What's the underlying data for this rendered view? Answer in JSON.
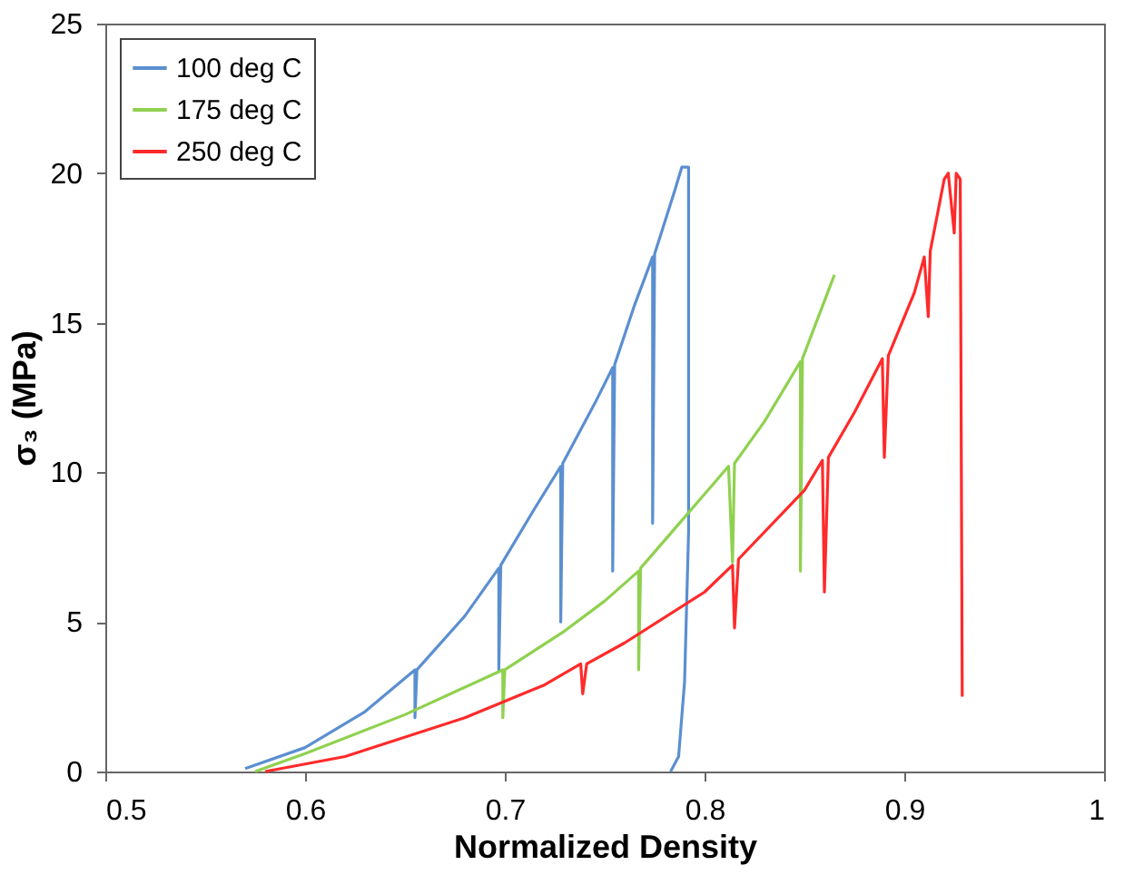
{
  "chart_data": {
    "type": "line",
    "xlabel": "Normalized Density",
    "ylabel": "σ₃ (MPa)",
    "xlim": [
      0.5,
      1
    ],
    "ylim": [
      0,
      25
    ],
    "xticks": [
      0.5,
      0.6,
      0.7,
      0.8,
      0.9,
      1
    ],
    "yticks": [
      0,
      5,
      10,
      15,
      20,
      25
    ],
    "grid": false,
    "legend": "top left",
    "marker": "none",
    "line_style": "solid",
    "series": [
      {
        "name": "100 deg C",
        "color": "#5b8fd0",
        "x": [
          0.57,
          0.6,
          0.63,
          0.655,
          0.655,
          0.656,
          0.68,
          0.697,
          0.697,
          0.698,
          0.715,
          0.728,
          0.728,
          0.729,
          0.745,
          0.754,
          0.754,
          0.755,
          0.765,
          0.774,
          0.774,
          0.775,
          0.785,
          0.7886,
          0.792,
          0.792,
          0.79,
          0.787,
          0.783
        ],
        "values": [
          0.1,
          0.8,
          2.0,
          3.4,
          1.8,
          3.4,
          5.2,
          6.8,
          3.4,
          6.9,
          8.8,
          10.2,
          5.0,
          10.3,
          12.3,
          13.5,
          6.7,
          13.6,
          15.6,
          17.2,
          8.3,
          17.3,
          19.4,
          20.2,
          20.2,
          8.0,
          3.0,
          0.5,
          0.0
        ]
      },
      {
        "name": "175 deg C",
        "color": "#8fd14f",
        "x": [
          0.575,
          0.6,
          0.65,
          0.699,
          0.699,
          0.7,
          0.73,
          0.75,
          0.767,
          0.767,
          0.768,
          0.79,
          0.812,
          0.814,
          0.815,
          0.83,
          0.848,
          0.848,
          0.849,
          0.865
        ],
        "values": [
          0.0,
          0.6,
          1.9,
          3.4,
          1.8,
          3.4,
          4.7,
          5.7,
          6.7,
          3.4,
          6.8,
          8.5,
          10.2,
          7.0,
          10.3,
          11.7,
          13.7,
          6.7,
          13.8,
          16.6
        ]
      },
      {
        "name": "250 deg C",
        "color": "#ff2a2a",
        "x": [
          0.58,
          0.62,
          0.68,
          0.72,
          0.738,
          0.739,
          0.741,
          0.76,
          0.8,
          0.814,
          0.815,
          0.817,
          0.85,
          0.859,
          0.86,
          0.862,
          0.875,
          0.889,
          0.89,
          0.892,
          0.905,
          0.91,
          0.912,
          0.913,
          0.92,
          0.922,
          0.925,
          0.926,
          0.928,
          0.929
        ],
        "values": [
          0.0,
          0.5,
          1.8,
          2.9,
          3.6,
          2.6,
          3.6,
          4.3,
          6.0,
          6.9,
          4.8,
          7.1,
          9.4,
          10.4,
          6.0,
          10.5,
          12.0,
          13.8,
          10.5,
          13.9,
          16.0,
          17.2,
          15.2,
          17.4,
          19.8,
          20.0,
          18.0,
          20.0,
          19.8,
          2.5
        ]
      }
    ]
  }
}
